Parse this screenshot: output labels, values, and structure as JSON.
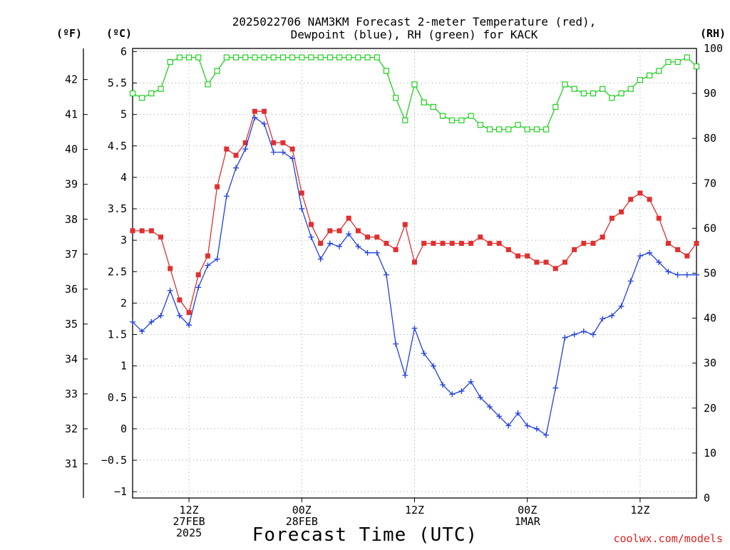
{
  "chart_data": {
    "type": "line",
    "title_line1": "2025022706 NAM3KM Forecast 2-meter Temperature (red),",
    "title_line2": "Dewpoint (blue), RH (green) for KACK",
    "xlabel": "Forecast Time (UTC)",
    "credit": "coolwx.com/models",
    "unit_labels": {
      "fahrenheit": "(ºF)",
      "celsius": "(ºC)",
      "rh": "(RH)"
    },
    "colors": {
      "temperature": "#e03030",
      "dewpoint": "#2040e0",
      "rh": "#20d020",
      "grid": "#a0a0a0"
    },
    "x_unit": "forecast hour (from 2025-02-27 06Z)",
    "x": [
      0,
      1,
      2,
      3,
      4,
      5,
      6,
      7,
      8,
      9,
      10,
      11,
      12,
      13,
      14,
      15,
      16,
      17,
      18,
      19,
      20,
      21,
      22,
      23,
      24,
      25,
      26,
      27,
      28,
      29,
      30,
      31,
      32,
      33,
      34,
      35,
      36,
      37,
      38,
      39,
      40,
      41,
      42,
      43,
      44,
      45,
      46,
      47,
      48,
      49,
      50,
      51,
      52,
      53,
      54,
      55,
      56,
      57,
      58,
      59,
      60
    ],
    "xlim": [
      0,
      60
    ],
    "x_ticks": [
      {
        "x": 6,
        "lines": [
          "12Z",
          "27FEB",
          "2025"
        ]
      },
      {
        "x": 18,
        "lines": [
          "00Z",
          "28FEB"
        ]
      },
      {
        "x": 30,
        "lines": [
          "12Z"
        ]
      },
      {
        "x": 42,
        "lines": [
          "00Z",
          "1MAR"
        ]
      },
      {
        "x": 54,
        "lines": [
          "12Z"
        ]
      }
    ],
    "y_celsius": {
      "lim": [
        -1.1,
        6.05
      ],
      "ticks": [
        -1,
        -0.5,
        0,
        0.5,
        1,
        1.5,
        2,
        2.5,
        3,
        3.5,
        4,
        4.5,
        5,
        5.5,
        6
      ],
      "tick_labels": [
        "−1",
        "−0.5",
        "0",
        "0.5",
        "1",
        "1.5",
        "2",
        "2.5",
        "3",
        "3.5",
        "4",
        "4.5",
        "5",
        "5.5",
        "6"
      ]
    },
    "y_fahrenheit": {
      "ticks": [
        31,
        32,
        33,
        34,
        35,
        36,
        37,
        38,
        39,
        40,
        41,
        42
      ]
    },
    "y_rh": {
      "lim": [
        0,
        100
      ],
      "ticks": [
        0,
        10,
        20,
        30,
        40,
        50,
        60,
        70,
        80,
        90,
        100
      ]
    },
    "series": [
      {
        "name": "Temperature (red)",
        "axis": "celsius",
        "marker": "filled-square",
        "values": [
          3.15,
          3.15,
          3.15,
          3.05,
          2.55,
          2.05,
          1.85,
          2.45,
          2.75,
          3.85,
          4.45,
          4.35,
          4.55,
          5.05,
          5.05,
          4.55,
          4.55,
          4.45,
          3.75,
          3.25,
          2.95,
          3.15,
          3.15,
          3.35,
          3.15,
          3.05,
          3.05,
          2.95,
          2.85,
          3.25,
          2.65,
          2.95,
          2.95,
          2.95,
          2.95,
          2.95,
          2.95,
          3.05,
          2.95,
          2.95,
          2.85,
          2.75,
          2.75,
          2.65,
          2.65,
          2.55,
          2.65,
          2.85,
          2.95,
          2.95,
          3.05,
          3.35,
          3.45,
          3.65,
          3.75,
          3.65,
          3.35,
          2.95,
          2.85,
          2.75,
          2.95
        ]
      },
      {
        "name": "Dewpoint (blue)",
        "axis": "celsius",
        "marker": "plus",
        "values": [
          1.7,
          1.55,
          1.7,
          1.8,
          2.2,
          1.8,
          1.65,
          2.25,
          2.6,
          2.7,
          3.7,
          4.15,
          4.45,
          4.95,
          4.85,
          4.4,
          4.4,
          4.3,
          3.5,
          3.05,
          2.7,
          2.95,
          2.9,
          3.1,
          2.9,
          2.8,
          2.8,
          2.45,
          1.35,
          0.85,
          1.6,
          1.2,
          1.0,
          0.7,
          0.55,
          0.6,
          0.75,
          0.5,
          0.35,
          0.2,
          0.05,
          0.25,
          0.05,
          0.0,
          -0.1,
          0.65,
          1.45,
          1.5,
          1.55,
          1.5,
          1.75,
          1.8,
          1.95,
          2.35,
          2.75,
          2.8,
          2.65,
          2.5,
          2.45,
          2.45,
          2.45
        ]
      },
      {
        "name": "RH (green)",
        "axis": "rh",
        "marker": "open-square",
        "values": [
          90,
          89,
          90,
          91,
          97,
          98,
          98,
          98,
          92,
          95,
          98,
          98,
          98,
          98,
          98,
          98,
          98,
          98,
          98,
          98,
          98,
          98,
          98,
          98,
          98,
          98,
          98,
          95,
          89,
          84,
          92,
          88,
          87,
          85,
          84,
          84,
          85,
          83,
          82,
          82,
          82,
          83,
          82,
          82,
          82,
          87,
          92,
          91,
          90,
          90,
          91,
          89,
          90,
          91,
          93,
          94,
          95,
          97,
          97,
          98,
          96
        ]
      }
    ]
  }
}
